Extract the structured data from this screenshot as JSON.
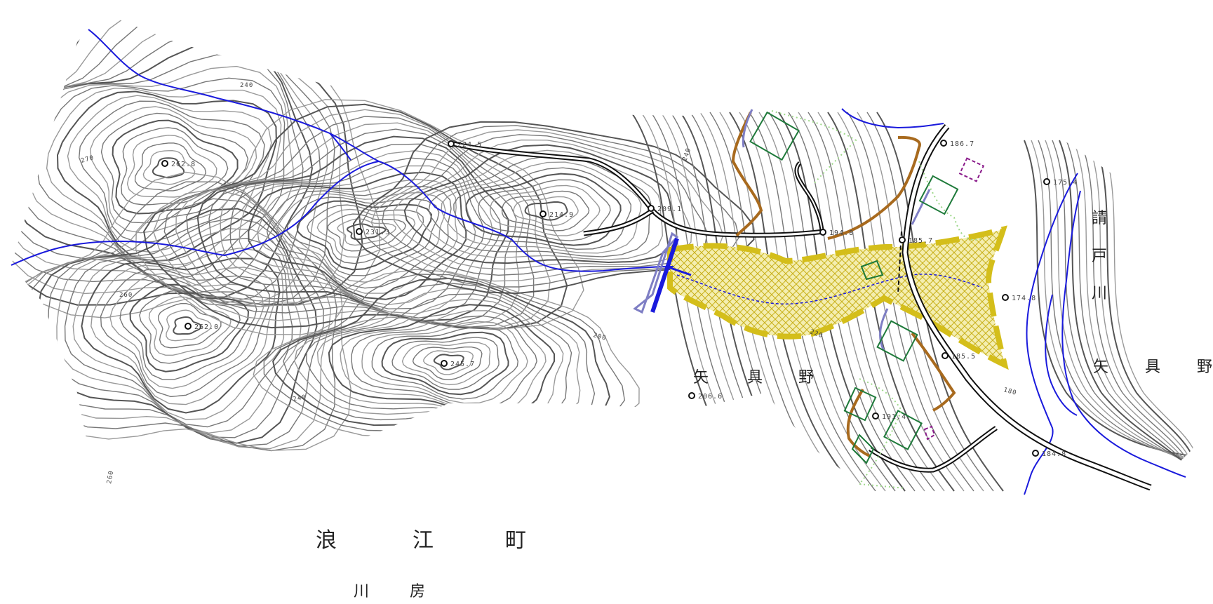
{
  "map": {
    "spot_heights": [
      {
        "value": "224.5"
      },
      {
        "value": "262.8"
      },
      {
        "value": "214.9"
      },
      {
        "value": "209.1"
      },
      {
        "value": "231.3"
      },
      {
        "value": "194.8"
      },
      {
        "value": "186.7"
      },
      {
        "value": "175.4"
      },
      {
        "value": "185.7"
      },
      {
        "value": "174.8"
      },
      {
        "value": "262.0"
      },
      {
        "value": "245.7"
      },
      {
        "value": "185.5"
      },
      {
        "value": "206.6"
      },
      {
        "value": "191.4"
      },
      {
        "value": "184.8"
      }
    ],
    "contour_labels": [
      "240",
      "270",
      "260",
      "240",
      "200",
      "240",
      "260",
      "220",
      "180"
    ],
    "place_names": {
      "yaguno_center": [
        "矢",
        "具",
        "野"
      ],
      "yaguno_east": [
        "矢",
        "具",
        "野"
      ],
      "namie_town": [
        "浪",
        "江",
        "町"
      ],
      "kawabusa": [
        "川",
        "房"
      ],
      "ukedogawa": [
        "請",
        "戸",
        "川"
      ]
    },
    "colors": {
      "contour_dark": "#555555",
      "contour_light": "#999999",
      "stream": "#1a1adc",
      "road": "#111111",
      "retaining_wall": "#a86a1e",
      "building": "#1e7a3a",
      "boundary": "#d4be1a",
      "hatch": "#e6d84a",
      "vegetation": "#9ed88a",
      "levee": "#7e7ec4",
      "marker": "#8a1a8a"
    }
  }
}
